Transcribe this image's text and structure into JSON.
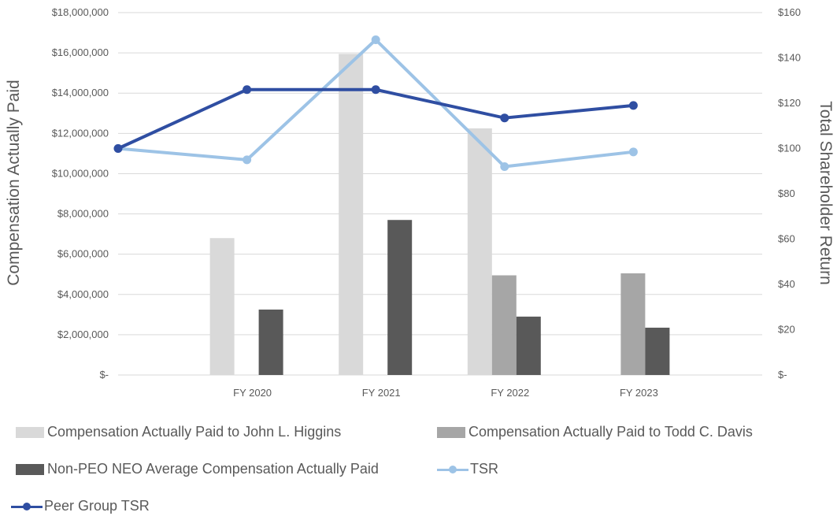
{
  "chart_data": {
    "type": "bar",
    "categories": [
      "",
      "FY 2020",
      "FY 2021",
      "FY 2022",
      "FY 2023"
    ],
    "y_left": {
      "label": "Compensation Actually Paid",
      "lim": [
        0,
        18000000
      ],
      "ticks": [
        "$-",
        "$2,000,000",
        "$4,000,000",
        "$6,000,000",
        "$8,000,000",
        "$10,000,000",
        "$12,000,000",
        "$14,000,000",
        "$16,000,000",
        "$18,000,000"
      ]
    },
    "y_right": {
      "label": "Total Shareholder Return",
      "lim": [
        0,
        160
      ],
      "ticks": [
        "$-",
        "$20",
        "$40",
        "$60",
        "$80",
        "$100",
        "$120",
        "$140",
        "$160"
      ]
    },
    "bar_series": [
      {
        "name": "Compensation Actually Paid to John L. Higgins",
        "color": "#d9d9d9",
        "values": [
          null,
          6800000,
          15950000,
          12250000,
          null
        ]
      },
      {
        "name": "Compensation Actually Paid to Todd C. Davis",
        "color": "#a6a6a6",
        "values": [
          null,
          null,
          null,
          4950000,
          5050000
        ]
      },
      {
        "name": "Non-PEO NEO Average Compensation Actually Paid",
        "color": "#595959",
        "values": [
          null,
          3250000,
          7700000,
          2900000,
          2350000
        ]
      }
    ],
    "line_series": [
      {
        "name": "TSR",
        "color": "#9dc3e6",
        "values": [
          100,
          95,
          148,
          92,
          98.5
        ]
      },
      {
        "name": "Peer Group TSR",
        "color": "#2f4ea2",
        "values": [
          100,
          126,
          126,
          113.5,
          119
        ]
      }
    ],
    "grid": true,
    "legend_position": "bottom"
  }
}
